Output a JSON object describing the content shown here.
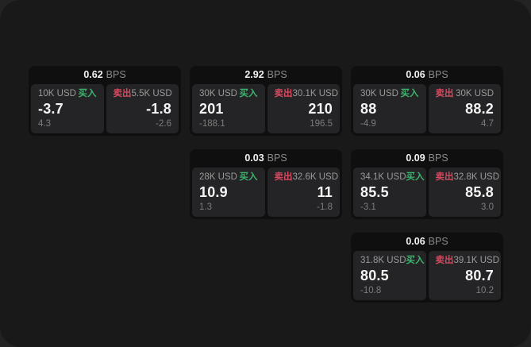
{
  "page": {
    "unit": "BPS"
  },
  "colors": {
    "buy_green": "#3cb46e",
    "sell_red": "#d6495f",
    "window_bg": "#191919",
    "card_bg": "#0f0f10",
    "panel_bg": "#242426"
  },
  "cards": [
    {
      "bps": "0.62",
      "buy": {
        "size": "10K USD",
        "side": "买入",
        "price": "-3.7",
        "delta": "4.3"
      },
      "sell": {
        "side": "卖出",
        "size": "5.5K USD",
        "price": "-1.8",
        "delta": "-2.6"
      }
    },
    {
      "bps": "2.92",
      "buy": {
        "size": "30K USD",
        "side": "买入",
        "price": "201",
        "delta": "-188.1"
      },
      "sell": {
        "side": "卖出",
        "size": "30.1K USD",
        "price": "210",
        "delta": "196.5"
      }
    },
    {
      "bps": "0.06",
      "buy": {
        "size": "30K USD",
        "side": "买入",
        "price": "88",
        "delta": "-4.9"
      },
      "sell": {
        "side": "卖出",
        "size": "30K USD",
        "price": "88.2",
        "delta": "4.7"
      }
    },
    {
      "bps": "0.03",
      "buy": {
        "size": "28K USD",
        "side": "买入",
        "price": "10.9",
        "delta": "1.3"
      },
      "sell": {
        "side": "卖出",
        "size": "32.6K USD",
        "price": "11",
        "delta": "-1.8"
      }
    },
    {
      "bps": "0.09",
      "buy": {
        "size": "34.1K USD",
        "side": "买入",
        "price": "85.5",
        "delta": "-3.1"
      },
      "sell": {
        "side": "卖出",
        "size": "32.8K USD",
        "price": "85.8",
        "delta": "3.0"
      }
    },
    {
      "bps": "0.06",
      "buy": {
        "size": "31.8K USD",
        "side": "买入",
        "price": "80.5",
        "delta": "-10.8"
      },
      "sell": {
        "side": "卖出",
        "size": "39.1K USD",
        "price": "80.7",
        "delta": "10.2"
      }
    }
  ]
}
